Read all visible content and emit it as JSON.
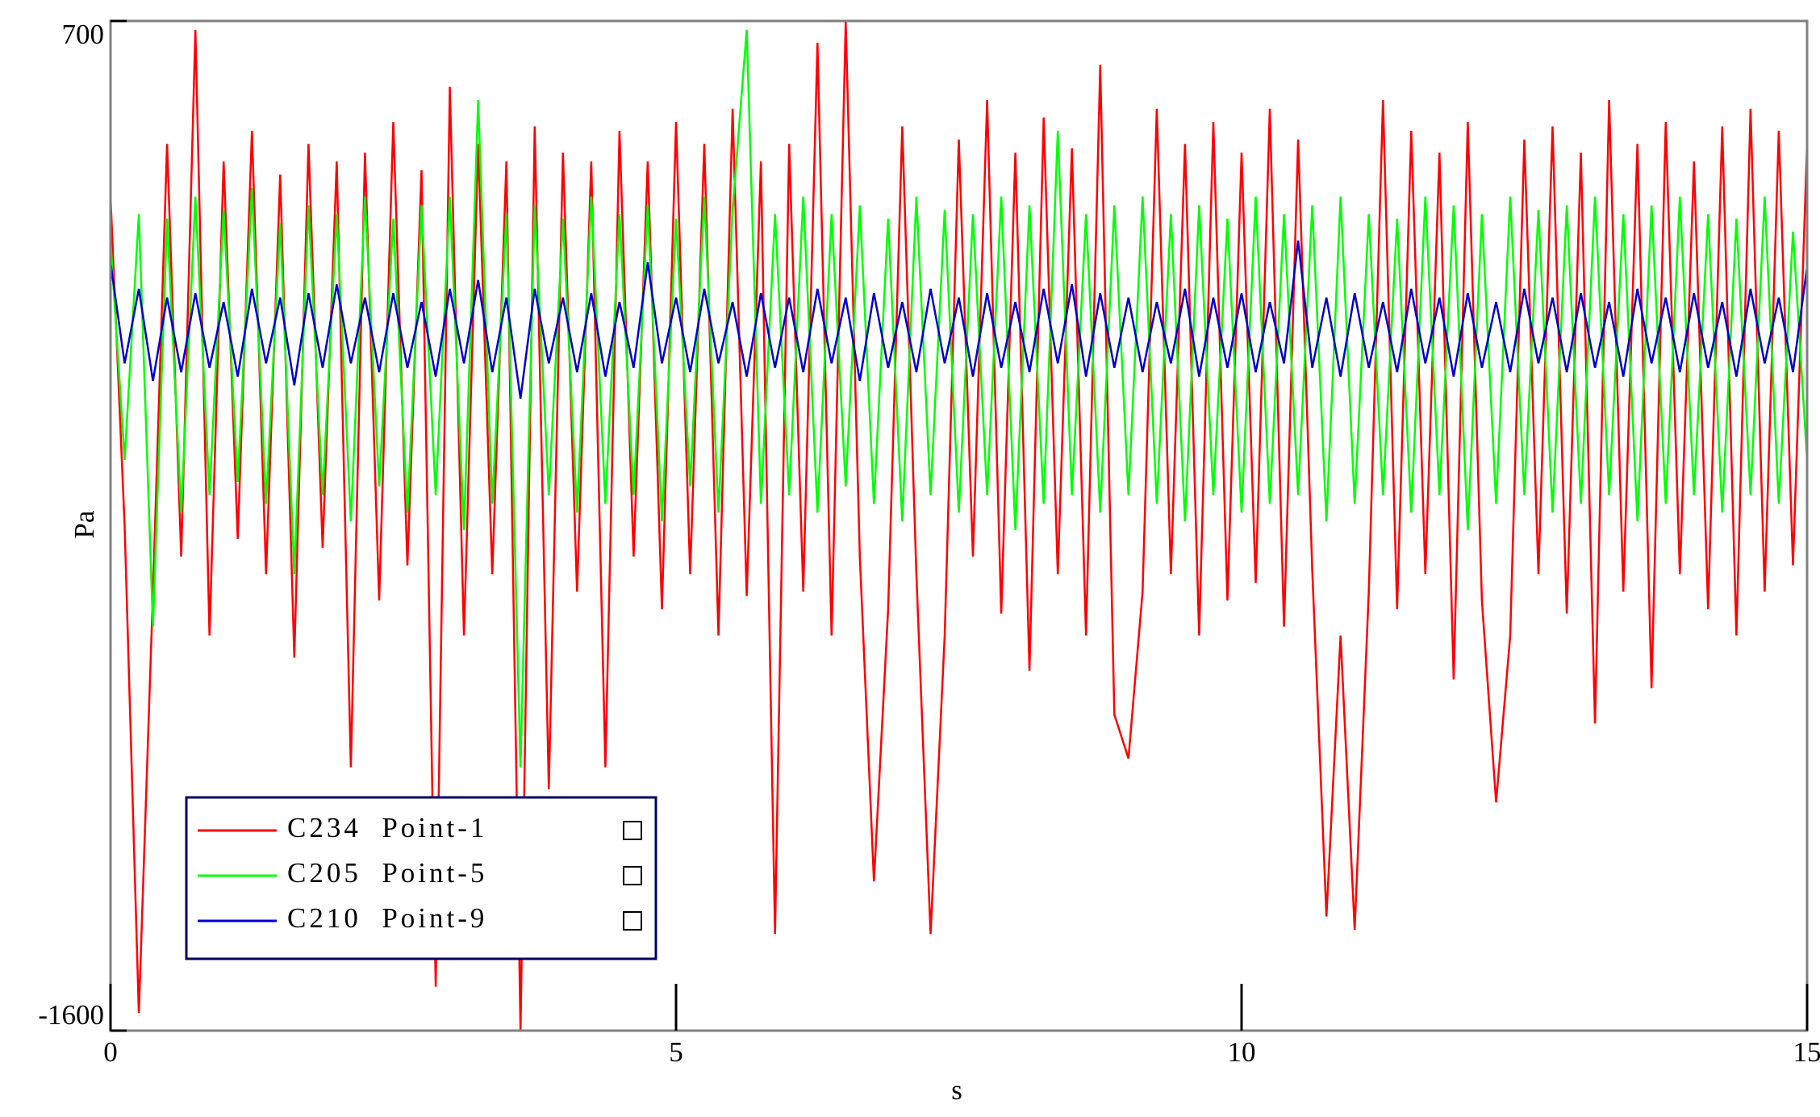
{
  "chart_data": {
    "type": "line",
    "x_label": "s",
    "y_label": "Pa",
    "xlim": [
      0,
      15
    ],
    "xticks": [
      0,
      5,
      10,
      15
    ],
    "ylim": [
      -1600,
      700
    ],
    "yticks": [
      -1600,
      700
    ],
    "legend": "lower left",
    "x": [
      0,
      0.125,
      0.25,
      0.375,
      0.5,
      0.625,
      0.75,
      0.875,
      1,
      1.125,
      1.25,
      1.375,
      1.5,
      1.625,
      1.75,
      1.875,
      2,
      2.125,
      2.25,
      2.375,
      2.5,
      2.625,
      2.75,
      2.875,
      3,
      3.125,
      3.25,
      3.375,
      3.5,
      3.625,
      3.75,
      3.875,
      4,
      4.125,
      4.25,
      4.375,
      4.5,
      4.625,
      4.75,
      4.875,
      5,
      5.125,
      5.25,
      5.375,
      5.5,
      5.625,
      5.75,
      5.875,
      6,
      6.125,
      6.25,
      6.375,
      6.5,
      6.625,
      6.75,
      6.875,
      7,
      7.125,
      7.25,
      7.375,
      7.5,
      7.625,
      7.75,
      7.875,
      8,
      8.125,
      8.25,
      8.375,
      8.5,
      8.625,
      8.75,
      8.875,
      9,
      9.125,
      9.25,
      9.375,
      9.5,
      9.625,
      9.75,
      9.875,
      10,
      10.125,
      10.25,
      10.375,
      10.5,
      10.625,
      10.75,
      10.875,
      11,
      11.125,
      11.25,
      11.375,
      11.5,
      11.625,
      11.75,
      11.875,
      12,
      12.125,
      12.25,
      12.375,
      12.5,
      12.625,
      12.75,
      12.875,
      13,
      13.125,
      13.25,
      13.375,
      13.5,
      13.625,
      13.75,
      13.875,
      14,
      14.125,
      14.25,
      14.375,
      14.5,
      14.625,
      14.75,
      14.875,
      15
    ],
    "series": [
      {
        "name": "C234  Point-1",
        "color": "#ff0000",
        "values": [
          300,
          -450,
          -1560,
          -600,
          420,
          -520,
          680,
          -700,
          380,
          -480,
          450,
          -560,
          350,
          -750,
          420,
          -500,
          380,
          -1000,
          400,
          -620,
          470,
          -540,
          360,
          -1500,
          550,
          -700,
          420,
          -560,
          380,
          -1600,
          460,
          -1050,
          400,
          -600,
          380,
          -1000,
          450,
          -520,
          380,
          -640,
          470,
          -560,
          420,
          -700,
          500,
          -610,
          380,
          -1380,
          420,
          -600,
          650,
          -700,
          700,
          -520,
          -1260,
          -640,
          460,
          -560,
          -1380,
          -700,
          430,
          -520,
          520,
          -650,
          400,
          -780,
          480,
          -560,
          410,
          -700,
          600,
          -880,
          -980,
          -600,
          500,
          -560,
          420,
          -700,
          470,
          -620,
          400,
          -580,
          500,
          -680,
          430,
          -550,
          -1340,
          -700,
          -1370,
          -600,
          520,
          -640,
          450,
          -560,
          400,
          -800,
          470,
          -620,
          -1080,
          -700,
          430,
          -560,
          460,
          -650,
          400,
          -900,
          520,
          -600,
          420,
          -820,
          470,
          -560,
          380,
          -640,
          460,
          -700,
          500,
          -600,
          450,
          -540,
          420
        ]
      },
      {
        "name": "C205  Point-5",
        "color": "#00ff00",
        "values": [
          200,
          -300,
          260,
          -680,
          250,
          -420,
          300,
          -380,
          270,
          -350,
          320,
          -400,
          240,
          -560,
          280,
          -380,
          260,
          -440,
          300,
          -360,
          250,
          -420,
          280,
          -380,
          300,
          -460,
          520,
          -400,
          260,
          -1000,
          280,
          -380,
          250,
          -420,
          300,
          -400,
          260,
          -380,
          280,
          -440,
          250,
          -360,
          300,
          -420,
          270,
          680,
          -400,
          260,
          -380,
          300,
          -420,
          260,
          -360,
          280,
          -400,
          250,
          -440,
          300,
          -380,
          270,
          -420,
          260,
          -380,
          300,
          -460,
          280,
          -400,
          450,
          -380,
          260,
          -420,
          280,
          -380,
          300,
          -400,
          260,
          -440,
          280,
          -380,
          250,
          -420,
          300,
          -400,
          260,
          -380,
          280,
          -440,
          300,
          -400,
          260,
          -380,
          250,
          -420,
          300,
          -380,
          280,
          -460,
          260,
          -400,
          300,
          -380,
          270,
          -420,
          280,
          -400,
          300,
          -380,
          260,
          -440,
          280,
          -400,
          300,
          -380,
          260,
          -420,
          250,
          -380,
          300,
          -400,
          220,
          -300
        ]
      },
      {
        "name": "C210  Point-9",
        "color": "#0000cc",
        "values": [
          150,
          -80,
          90,
          -120,
          70,
          -100,
          80,
          -90,
          60,
          -110,
          90,
          -80,
          70,
          -130,
          80,
          -90,
          100,
          -80,
          70,
          -100,
          80,
          -90,
          60,
          -110,
          90,
          -80,
          110,
          -100,
          70,
          -160,
          90,
          -80,
          70,
          -100,
          80,
          -110,
          60,
          -90,
          150,
          -80,
          70,
          -100,
          90,
          -80,
          60,
          -110,
          80,
          -90,
          70,
          -100,
          90,
          -80,
          70,
          -120,
          80,
          -90,
          60,
          -100,
          90,
          -80,
          70,
          -110,
          80,
          -90,
          60,
          -100,
          90,
          -80,
          100,
          -110,
          80,
          -90,
          70,
          -100,
          60,
          -80,
          90,
          -110,
          70,
          -90,
          80,
          -100,
          60,
          -80,
          200,
          -90,
          70,
          -110,
          80,
          -90,
          60,
          -100,
          90,
          -80,
          70,
          -110,
          80,
          -90,
          60,
          -100,
          90,
          -80,
          70,
          -100,
          80,
          -90,
          60,
          -110,
          90,
          -80,
          70,
          -100,
          80,
          -90,
          60,
          -110,
          90,
          -80,
          70,
          -100,
          140
        ]
      }
    ]
  }
}
